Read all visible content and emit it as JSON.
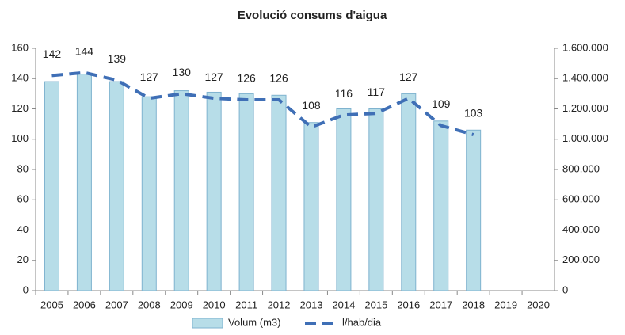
{
  "chart_data": {
    "type": "bar_line",
    "title": "Evolució consums d'aigua",
    "categories": [
      "2005",
      "2006",
      "2007",
      "2008",
      "2009",
      "2010",
      "2011",
      "2012",
      "2013",
      "2014",
      "2015",
      "2016",
      "2017",
      "2018",
      "2019",
      "2020"
    ],
    "series": [
      {
        "name": "Volum (m3)",
        "type": "bar",
        "axis": "y2",
        "color": "#b7dde8",
        "values": [
          1380000,
          1430000,
          1380000,
          1280000,
          1320000,
          1310000,
          1300000,
          1290000,
          1110000,
          1200000,
          1200000,
          1300000,
          1120000,
          1060000,
          null,
          null
        ]
      },
      {
        "name": "l/hab/dia",
        "type": "line",
        "color": "#3f6fb6",
        "values": [
          142,
          144,
          139,
          127,
          130,
          127,
          126,
          126,
          108,
          116,
          117,
          127,
          109,
          103,
          null,
          null
        ]
      }
    ],
    "ylim": [
      0,
      160
    ],
    "yticks": [
      0,
      20,
      40,
      60,
      80,
      100,
      120,
      140,
      160
    ],
    "y2lim": [
      0,
      1600000
    ],
    "y2ticks": [
      0,
      {
        "value": 200000,
        "label": "200.000"
      },
      {
        "value": 400000,
        "label": "400.000"
      },
      {
        "value": 600000,
        "label": "600.000"
      },
      {
        "value": 800000,
        "label": "800.000"
      },
      {
        "value": 1000000,
        "label": "1.000.000"
      },
      {
        "value": 1200000,
        "label": "1.200.000"
      },
      {
        "value": 1400000,
        "label": "1.400.000"
      },
      {
        "value": 1600000,
        "label": "1.600.000"
      }
    ],
    "legend": "bottom"
  }
}
